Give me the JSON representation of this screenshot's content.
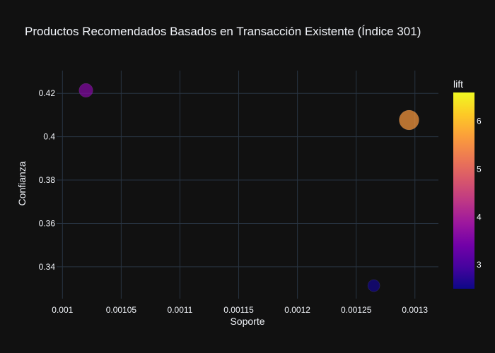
{
  "chart_data": {
    "type": "scatter",
    "title": "Productos Recomendados Basados en Transacción Existente (Índice 301)",
    "xlabel": "Soporte",
    "ylabel": "Confianza",
    "xlim": [
      0.000995,
      0.00132
    ],
    "ylim": [
      0.3253,
      0.4305
    ],
    "x_ticks": [
      0.001,
      0.00105,
      0.0011,
      0.00115,
      0.0012,
      0.00125,
      0.0013
    ],
    "x_tick_labels": [
      "0.001",
      "0.00105",
      "0.0011",
      "0.00115",
      "0.0012",
      "0.00125",
      "0.0013"
    ],
    "y_ticks": [
      0.34,
      0.36,
      0.38,
      0.4,
      0.42
    ],
    "y_tick_labels": [
      "0.34",
      "0.36",
      "0.38",
      "0.4",
      "0.42"
    ],
    "grid": true,
    "color_variable": "lift",
    "colorscale": [
      "#0d0887",
      "#46039f",
      "#7201a8",
      "#9c179e",
      "#bd3786",
      "#d8576b",
      "#ed7953",
      "#fb9f3a",
      "#fdca26",
      "#f0f921"
    ],
    "colorbar": {
      "title": "lift",
      "range": [
        2.5,
        6.6
      ],
      "ticks": [
        3,
        4,
        5,
        6
      ],
      "tick_labels": [
        "3",
        "4",
        "5",
        "6"
      ],
      "position": "right"
    },
    "points": [
      {
        "x": 0.00102,
        "y": 0.4214,
        "lift": 3.6,
        "size": 0.49
      },
      {
        "x": 0.001295,
        "y": 0.4077,
        "lift": 5.6,
        "size": 1.0
      },
      {
        "x": 0.001265,
        "y": 0.3313,
        "lift": 2.55,
        "size": 0.37
      }
    ]
  }
}
